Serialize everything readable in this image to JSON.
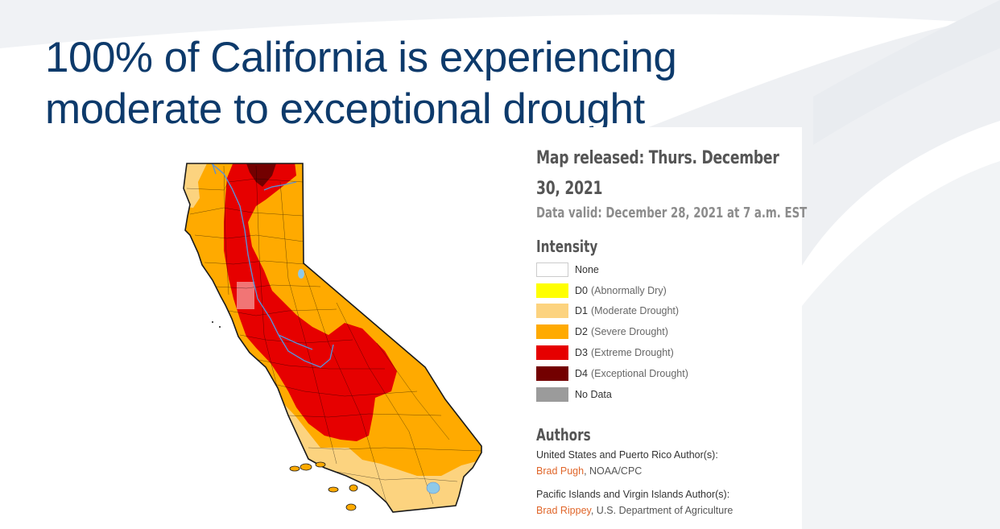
{
  "slide": {
    "title_line1": "100% of California is experiencing",
    "title_line2": "moderate to exceptional drought"
  },
  "legend": {
    "released": "Map released: Thurs. December 30, 2021",
    "valid": "Data valid: December 28, 2021 at 7 a.m. EST",
    "intensity_title": "Intensity",
    "items": [
      {
        "code": "None",
        "desc": "",
        "color": "#ffffff"
      },
      {
        "code": "D0",
        "desc": "(Abnormally Dry)",
        "color": "#ffff00"
      },
      {
        "code": "D1",
        "desc": "(Moderate Drought)",
        "color": "#fcd37f"
      },
      {
        "code": "D2",
        "desc": "(Severe Drought)",
        "color": "#ffaa00"
      },
      {
        "code": "D3",
        "desc": "(Extreme Drought)",
        "color": "#e60000"
      },
      {
        "code": "D4",
        "desc": "(Exceptional Drought)",
        "color": "#730000"
      },
      {
        "code": "No Data",
        "desc": "",
        "color": "#9b9b9b"
      }
    ]
  },
  "authors": {
    "title": "Authors",
    "us_label": "United States and Puerto Rico Author(s):",
    "us_name": "Brad Pugh",
    "us_org": ", NOAA/CPC",
    "pi_label": "Pacific Islands and Virgin Islands Author(s):",
    "pi_name": "Brad Rippey",
    "pi_org": ", U.S. Department of Agriculture"
  },
  "colors": {
    "title": "#0d3a6b",
    "author_link": "#e0662a",
    "water": "#8ec9e8"
  }
}
